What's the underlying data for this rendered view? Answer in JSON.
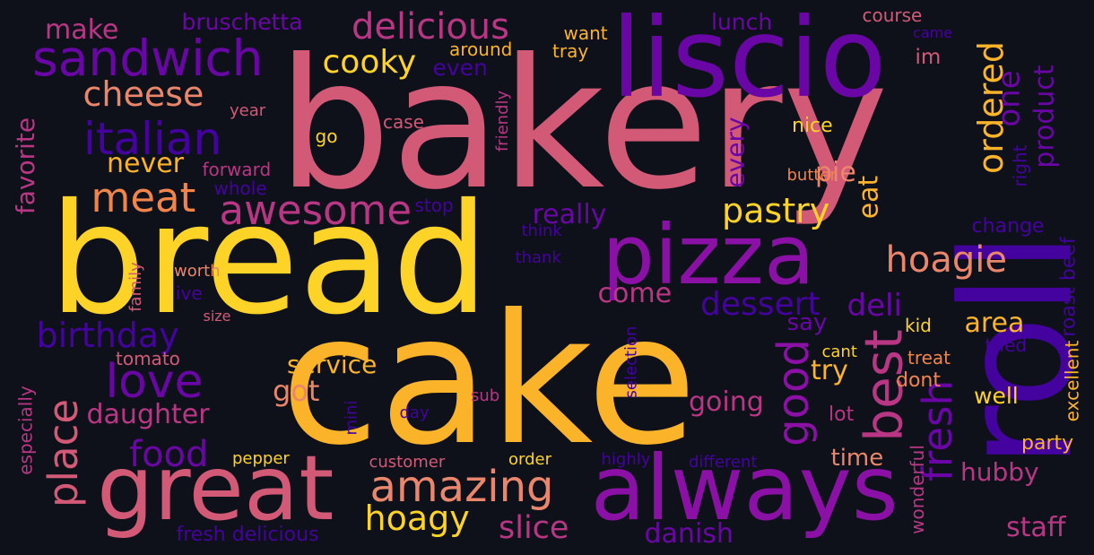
{
  "palette": {
    "background": "#0f111a",
    "yellow": "#fdd327",
    "amber": "#fbb32a",
    "orange": "#f0844b",
    "salmon": "#e9866b",
    "rose": "#d25a77",
    "magenta": "#b93685",
    "purple": "#8b10a5",
    "violet": "#6a06a6",
    "indigo": "#44039e",
    "darkblue": "#220890"
  },
  "words": [
    {
      "text": "bakery",
      "color": "rose",
      "rot": 0
    },
    {
      "text": "cake",
      "color": "amber",
      "rot": 0
    },
    {
      "text": "bread",
      "color": "yellow",
      "rot": 0
    },
    {
      "text": "roll",
      "color": "indigo",
      "rot": 90
    },
    {
      "text": "liscio",
      "color": "violet",
      "rot": 0
    },
    {
      "text": "great",
      "color": "rose",
      "rot": 0
    },
    {
      "text": "always",
      "color": "purple",
      "rot": 0
    },
    {
      "text": "pizza",
      "color": "purple",
      "rot": 0
    },
    {
      "text": "sandwich",
      "color": "violet",
      "rot": 0
    },
    {
      "text": "italian",
      "color": "indigo",
      "rot": 0
    },
    {
      "text": "delicious",
      "color": "magenta",
      "rot": 0
    },
    {
      "text": "cheese",
      "color": "salmon",
      "rot": 0
    },
    {
      "text": "meat",
      "color": "orange",
      "rot": 0
    },
    {
      "text": "awesome",
      "color": "magenta",
      "rot": 0
    },
    {
      "text": "cooky",
      "color": "yellow",
      "rot": 0
    },
    {
      "text": "ordered",
      "color": "amber",
      "rot": 90
    },
    {
      "text": "hoagie",
      "color": "salmon",
      "rot": 0
    },
    {
      "text": "pastry",
      "color": "yellow",
      "rot": 0
    },
    {
      "text": "best",
      "color": "magenta",
      "rot": 90
    },
    {
      "text": "good",
      "color": "purple",
      "rot": 90
    },
    {
      "text": "fresh",
      "color": "violet",
      "rot": 90
    },
    {
      "text": "love",
      "color": "violet",
      "rot": 0
    },
    {
      "text": "birthday",
      "color": "indigo",
      "rot": 0
    },
    {
      "text": "place",
      "color": "rose",
      "rot": 90
    },
    {
      "text": "amazing",
      "color": "salmon",
      "rot": 0
    },
    {
      "text": "hoagy",
      "color": "yellow",
      "rot": 0
    },
    {
      "text": "food",
      "color": "violet",
      "rot": 0
    },
    {
      "text": "daughter",
      "color": "magenta",
      "rot": 0
    },
    {
      "text": "got",
      "color": "salmon",
      "rot": 0
    },
    {
      "text": "service",
      "color": "amber",
      "rot": 0
    },
    {
      "text": "slice",
      "color": "magenta",
      "rot": 0
    },
    {
      "text": "danish",
      "color": "violet",
      "rot": 0
    },
    {
      "text": "going",
      "color": "magenta",
      "rot": 0
    },
    {
      "text": "try",
      "color": "amber",
      "rot": 0
    },
    {
      "text": "area",
      "color": "amber",
      "rot": 0
    },
    {
      "text": "dessert",
      "color": "indigo",
      "rot": 0
    },
    {
      "text": "deli",
      "color": "violet",
      "rot": 0
    },
    {
      "text": "come",
      "color": "magenta",
      "rot": 0
    },
    {
      "text": "say",
      "color": "violet",
      "rot": 0
    },
    {
      "text": "really",
      "color": "violet",
      "rot": 0
    },
    {
      "text": "every",
      "color": "violet",
      "rot": 90
    },
    {
      "text": "pie",
      "color": "salmon",
      "rot": 0
    },
    {
      "text": "eat",
      "color": "amber",
      "rot": 90
    },
    {
      "text": "never",
      "color": "amber",
      "rot": 0
    },
    {
      "text": "make",
      "color": "magenta",
      "rot": 0
    },
    {
      "text": "bruschetta",
      "color": "violet",
      "rot": 0
    },
    {
      "text": "lunch",
      "color": "violet",
      "rot": 0
    },
    {
      "text": "even",
      "color": "indigo",
      "rot": 0
    },
    {
      "text": "im",
      "color": "rose",
      "rot": 0
    },
    {
      "text": "one",
      "color": "violet",
      "rot": 90
    },
    {
      "text": "product",
      "color": "violet",
      "rot": 90
    },
    {
      "text": "favorite",
      "color": "magenta",
      "rot": 90
    },
    {
      "text": "staff",
      "color": "magenta",
      "rot": 0
    },
    {
      "text": "hubby",
      "color": "magenta",
      "rot": 0
    },
    {
      "text": "time",
      "color": "salmon",
      "rot": 0
    },
    {
      "text": "party",
      "color": "amber",
      "rot": 0
    },
    {
      "text": "well",
      "color": "yellow",
      "rot": 0
    },
    {
      "text": "dont",
      "color": "orange",
      "rot": 0
    },
    {
      "text": "kid",
      "color": "yellow",
      "rot": 0
    },
    {
      "text": "treat",
      "color": "orange",
      "rot": 0
    },
    {
      "text": "tried",
      "color": "indigo",
      "rot": 0
    },
    {
      "text": "cant",
      "color": "yellow",
      "rot": 0
    },
    {
      "text": "lot",
      "color": "magenta",
      "rot": 0
    },
    {
      "text": "change",
      "color": "indigo",
      "rot": 0
    },
    {
      "text": "right",
      "color": "indigo",
      "rot": 90
    },
    {
      "text": "roast beef",
      "color": "indigo",
      "rot": 90
    },
    {
      "text": "excellent",
      "color": "amber",
      "rot": 90
    },
    {
      "text": "wonderful",
      "color": "magenta",
      "rot": 90
    },
    {
      "text": "nice",
      "color": "yellow",
      "rot": 0
    },
    {
      "text": "butter",
      "color": "orange",
      "rot": 0
    },
    {
      "text": "came",
      "color": "indigo",
      "rot": 0
    },
    {
      "text": "course",
      "color": "rose",
      "rot": 0
    },
    {
      "text": "want",
      "color": "amber",
      "rot": 0
    },
    {
      "text": "around",
      "color": "amber",
      "rot": 0
    },
    {
      "text": "tray",
      "color": "amber",
      "rot": 0
    },
    {
      "text": "friendly",
      "color": "magenta",
      "rot": 90
    },
    {
      "text": "case",
      "color": "rose",
      "rot": 0
    },
    {
      "text": "go",
      "color": "yellow",
      "rot": 0
    },
    {
      "text": "year",
      "color": "rose",
      "rot": 0
    },
    {
      "text": "forward",
      "color": "magenta",
      "rot": 0
    },
    {
      "text": "whole",
      "color": "indigo",
      "rot": 0
    },
    {
      "text": "stop",
      "color": "indigo",
      "rot": 0
    },
    {
      "text": "think",
      "color": "indigo",
      "rot": 0
    },
    {
      "text": "thank",
      "color": "indigo",
      "rot": 0
    },
    {
      "text": "worth",
      "color": "salmon",
      "rot": 0
    },
    {
      "text": "family",
      "color": "rose",
      "rot": 90
    },
    {
      "text": "ive",
      "color": "indigo",
      "rot": 0
    },
    {
      "text": "size",
      "color": "rose",
      "rot": 0
    },
    {
      "text": "tomato",
      "color": "rose",
      "rot": 0
    },
    {
      "text": "especially",
      "color": "magenta",
      "rot": 90
    },
    {
      "text": "mini",
      "color": "indigo",
      "rot": 90
    },
    {
      "text": "sub",
      "color": "magenta",
      "rot": 0
    },
    {
      "text": "day",
      "color": "indigo",
      "rot": 0
    },
    {
      "text": "selection",
      "color": "indigo",
      "rot": 90
    },
    {
      "text": "pepper",
      "color": "yellow",
      "rot": 0
    },
    {
      "text": "customer",
      "color": "rose",
      "rot": 0
    },
    {
      "text": "order",
      "color": "yellow",
      "rot": 0
    },
    {
      "text": "highly",
      "color": "indigo",
      "rot": 0
    },
    {
      "text": "different",
      "color": "indigo",
      "rot": 0
    },
    {
      "text": "fresh delicious",
      "color": "indigo",
      "rot": 0
    }
  ]
}
